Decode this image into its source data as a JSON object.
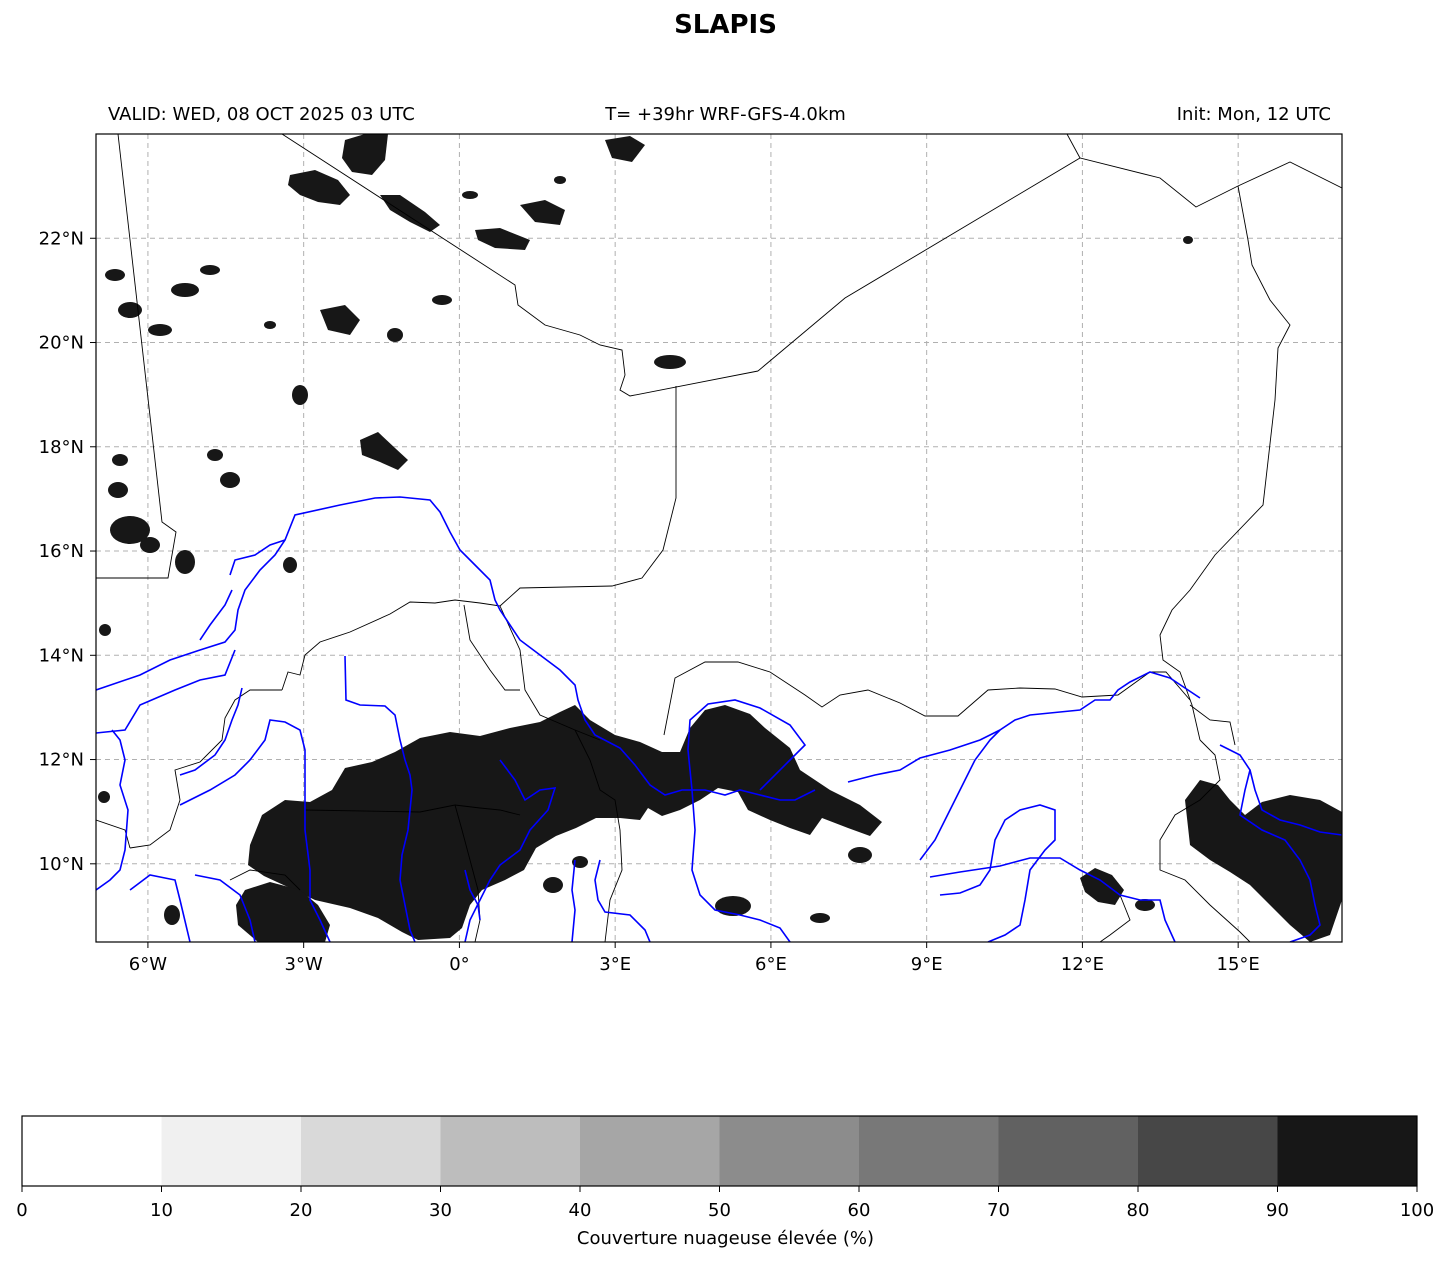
{
  "title": "SLAPIS",
  "header": {
    "valid": "VALID: WED, 08 OCT 2025 03 UTC",
    "run": "T= +39hr WRF-GFS-4.0km",
    "init": "Init: Mon, 12 UTC"
  },
  "map": {
    "lon_range": [
      -7,
      17
    ],
    "lat_range": [
      8.5,
      24
    ],
    "lon_ticks": [
      {
        "value": -6,
        "label": "6°W"
      },
      {
        "value": -3,
        "label": "3°W"
      },
      {
        "value": 0,
        "label": "0°"
      },
      {
        "value": 3,
        "label": "3°E"
      },
      {
        "value": 6,
        "label": "6°E"
      },
      {
        "value": 9,
        "label": "9°E"
      },
      {
        "value": 12,
        "label": "12°E"
      },
      {
        "value": 15,
        "label": "15°E"
      }
    ],
    "lat_ticks": [
      {
        "value": 10,
        "label": "10°N"
      },
      {
        "value": 12,
        "label": "12°N"
      },
      {
        "value": 14,
        "label": "14°N"
      },
      {
        "value": 16,
        "label": "16°N"
      },
      {
        "value": 18,
        "label": "18°N"
      },
      {
        "value": 20,
        "label": "20°N"
      },
      {
        "value": 22,
        "label": "22°N"
      }
    ],
    "gridlines": true,
    "colors": {
      "border": "#000000",
      "river": "#0000ff",
      "cloud": "#171717",
      "grid": "#b0b0b0"
    }
  },
  "colorbar": {
    "label": "Couverture nuageuse élevée (%)",
    "ticks": [
      "0",
      "10",
      "20",
      "30",
      "40",
      "50",
      "60",
      "70",
      "80",
      "90",
      "100"
    ],
    "colors": [
      "#ffffff",
      "#f0f0f0",
      "#d9d9d9",
      "#bdbdbd",
      "#a6a6a6",
      "#8c8c8c",
      "#787878",
      "#616161",
      "#474747",
      "#171717"
    ]
  }
}
